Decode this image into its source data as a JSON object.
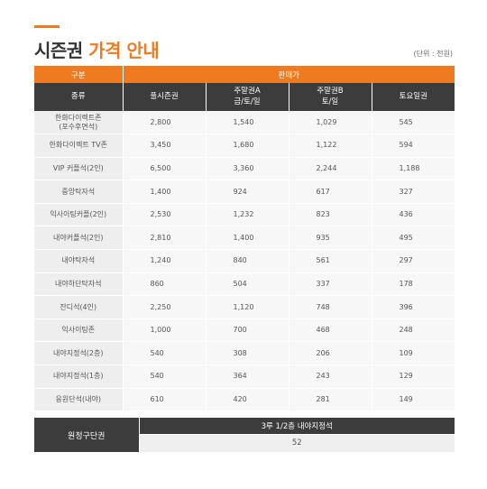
{
  "header": {
    "title_black": "시즌권",
    "title_orange": "가격 안내",
    "unit_note": "(단위 : 천원)",
    "accent_color": "#f07a20"
  },
  "table": {
    "group_headers": {
      "category": "구분",
      "price": "판매가"
    },
    "columns": [
      "종류",
      "풀시즌권",
      [
        "주말권A",
        "금/토/일"
      ],
      [
        "주말권B",
        "토/일"
      ],
      "토요일권"
    ],
    "rows": [
      {
        "name": [
          "한화다이렉트존",
          "(포수후면석)"
        ],
        "values": [
          "2,800",
          "1,540",
          "1,029",
          "545"
        ]
      },
      {
        "name": [
          "한화다이렉트 TV존"
        ],
        "values": [
          "3,450",
          "1,680",
          "1,122",
          "594"
        ]
      },
      {
        "name": [
          "VIP 커플석(2인)"
        ],
        "values": [
          "6,500",
          "3,360",
          "2,244",
          "1,188"
        ]
      },
      {
        "name": [
          "중앙탁자석"
        ],
        "values": [
          "1,400",
          "924",
          "617",
          "327"
        ]
      },
      {
        "name": [
          "익사이팅커플(2인)"
        ],
        "values": [
          "2,530",
          "1,232",
          "823",
          "436"
        ]
      },
      {
        "name": [
          "내야커플석(2인)"
        ],
        "values": [
          "2,810",
          "1,400",
          "935",
          "495"
        ]
      },
      {
        "name": [
          "내야탁자석"
        ],
        "values": [
          "1,240",
          "840",
          "561",
          "297"
        ]
      },
      {
        "name": [
          "내야하단탁자석"
        ],
        "values": [
          "860",
          "504",
          "337",
          "178"
        ]
      },
      {
        "name": [
          "잔디석(4인)"
        ],
        "values": [
          "2,250",
          "1,120",
          "748",
          "396"
        ]
      },
      {
        "name": [
          "익사이팅존"
        ],
        "values": [
          "1,000",
          "700",
          "468",
          "248"
        ]
      },
      {
        "name": [
          "내야지정석(2층)"
        ],
        "values": [
          "540",
          "308",
          "206",
          "109"
        ]
      },
      {
        "name": [
          "내야지정석(1층)"
        ],
        "values": [
          "540",
          "364",
          "243",
          "129"
        ]
      },
      {
        "name": [
          "응원단석(내야)"
        ],
        "values": [
          "610",
          "420",
          "281",
          "149"
        ]
      }
    ]
  },
  "away": {
    "label": "원정구단권",
    "seat": "3루 1/2층 내야지정석",
    "value": "52"
  }
}
